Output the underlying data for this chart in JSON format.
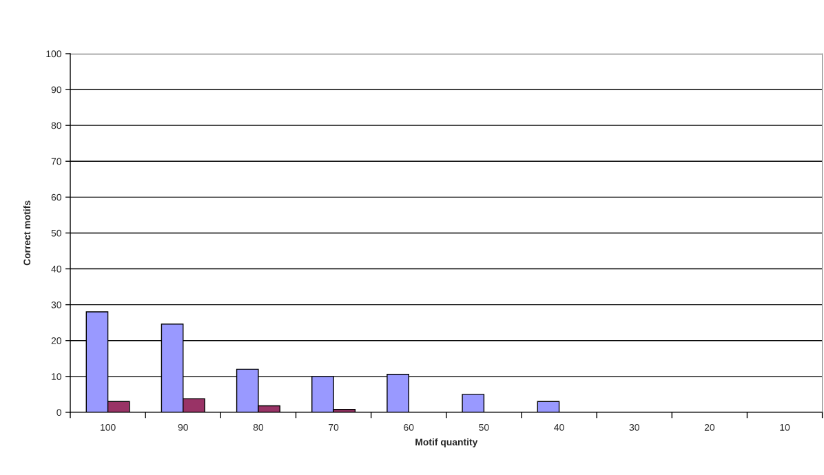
{
  "chart_data": {
    "type": "bar",
    "xlabel": "Motif quantity",
    "ylabel": "Correct motifs",
    "categories": [
      "100",
      "90",
      "80",
      "70",
      "60",
      "50",
      "40",
      "30",
      "20",
      "10"
    ],
    "series": [
      {
        "color": "#9999ff",
        "values": [
          28,
          24.6,
          12,
          10,
          10.6,
          5,
          3,
          null,
          null,
          null
        ]
      },
      {
        "color": "#993366",
        "values": [
          3,
          3.8,
          1.8,
          0.8,
          null,
          null,
          null,
          null,
          null,
          null
        ]
      }
    ],
    "ylim": [
      0,
      100
    ],
    "yticks": [
      0,
      10,
      20,
      30,
      40,
      50,
      60,
      70,
      80,
      90,
      100
    ],
    "grid": "y"
  }
}
